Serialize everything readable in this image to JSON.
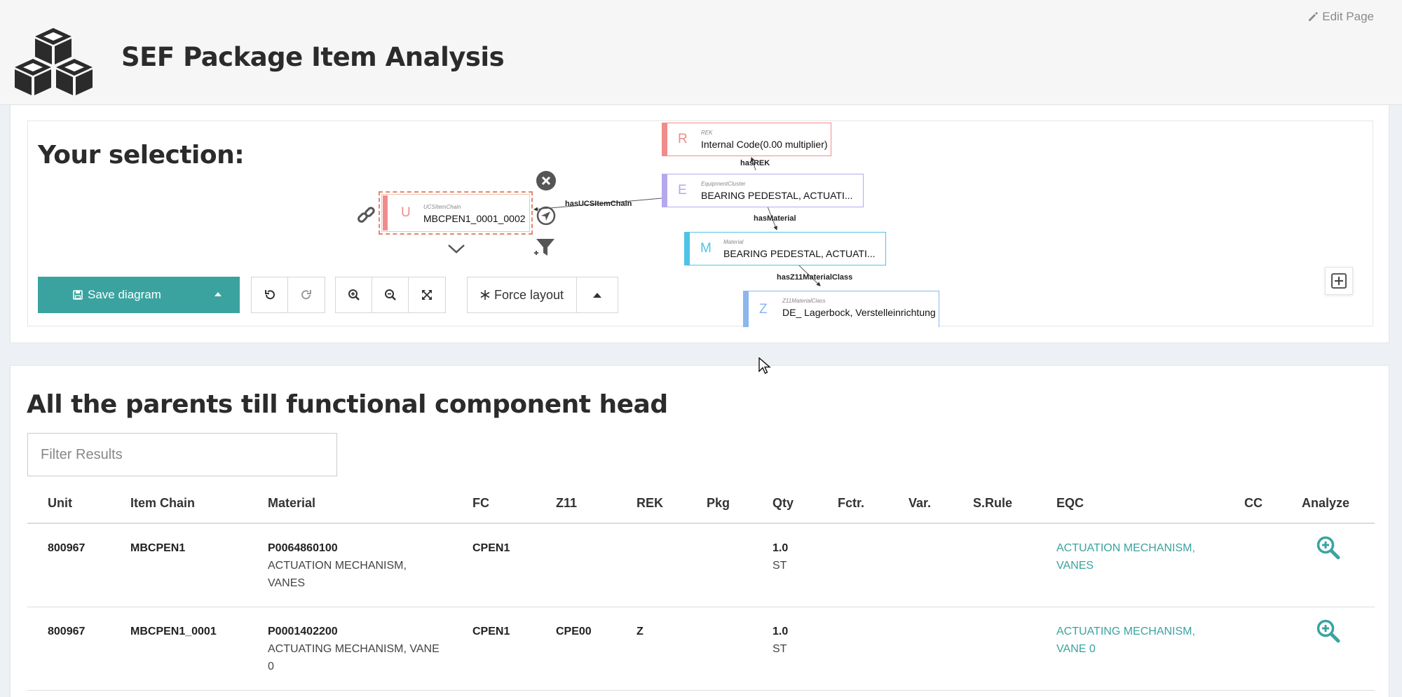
{
  "header": {
    "title": "SEF Package Item Analysis",
    "edit_page": "Edit Page"
  },
  "selection": {
    "title": "Your selection:",
    "nodes": [
      {
        "key": "rek",
        "letter": "R",
        "type": "REK",
        "label": "Internal Code(0.00 multiplier)",
        "color": "#f08c8c"
      },
      {
        "key": "eqc",
        "letter": "E",
        "type": "EquipmentCluster",
        "label": "BEARING PEDESTAL, ACTUATI...",
        "color": "#b6a8ee"
      },
      {
        "key": "ucs",
        "letter": "U",
        "type": "UCSItemChain",
        "label": "MBCPEN1_0001_0002",
        "color": "#f08c8c"
      },
      {
        "key": "mat",
        "letter": "M",
        "type": "Material",
        "label": "BEARING PEDESTAL, ACTUATI...",
        "color": "#4dc3e6"
      },
      {
        "key": "z11",
        "letter": "Z",
        "type": "Z11MaterialClass",
        "label": "DE_ Lagerbock, Verstelleinrichtung",
        "color": "#8bb6ee"
      }
    ],
    "edges": {
      "has_rek": "hasREK",
      "has_ucs": "hasUCSItemChain",
      "has_material": "hasMaterial",
      "has_z11": "hasZ11MaterialClass"
    },
    "toolbar": {
      "save_label": "Save diagram",
      "force_label": "Force layout"
    }
  },
  "parents": {
    "title": "All the parents till functional component head",
    "filter_placeholder": "Filter Results",
    "columns": {
      "unit": "Unit",
      "item_chain": "Item Chain",
      "material": "Material",
      "fc": "FC",
      "z11": "Z11",
      "rek": "REK",
      "pkg": "Pkg",
      "qty": "Qty",
      "fctr": "Fctr.",
      "var": "Var.",
      "srule": "S.Rule",
      "eqc": "EQC",
      "cc": "CC",
      "analyze": "Analyze"
    },
    "rows": [
      {
        "unit": "800967",
        "item_chain": "MBCPEN1",
        "material_code": "P0064860100",
        "material_desc": "ACTUATION MECHANISM, VANES",
        "fc": "CPEN1",
        "z11": "",
        "rek": "",
        "qty": "1.0",
        "qty_unit": "ST",
        "eqc": "ACTUATION MECHANISM, VANES"
      },
      {
        "unit": "800967",
        "item_chain": "MBCPEN1_0001",
        "material_code": "P0001402200",
        "material_desc": "ACTUATING MECHANISM, VANE 0",
        "fc": "CPEN1",
        "z11": "CPE00",
        "rek": "Z",
        "qty": "1.0",
        "qty_unit": "ST",
        "eqc": "ACTUATING MECHANISM, VANE 0"
      }
    ]
  },
  "colors": {
    "accent": "#3aa3a0"
  }
}
